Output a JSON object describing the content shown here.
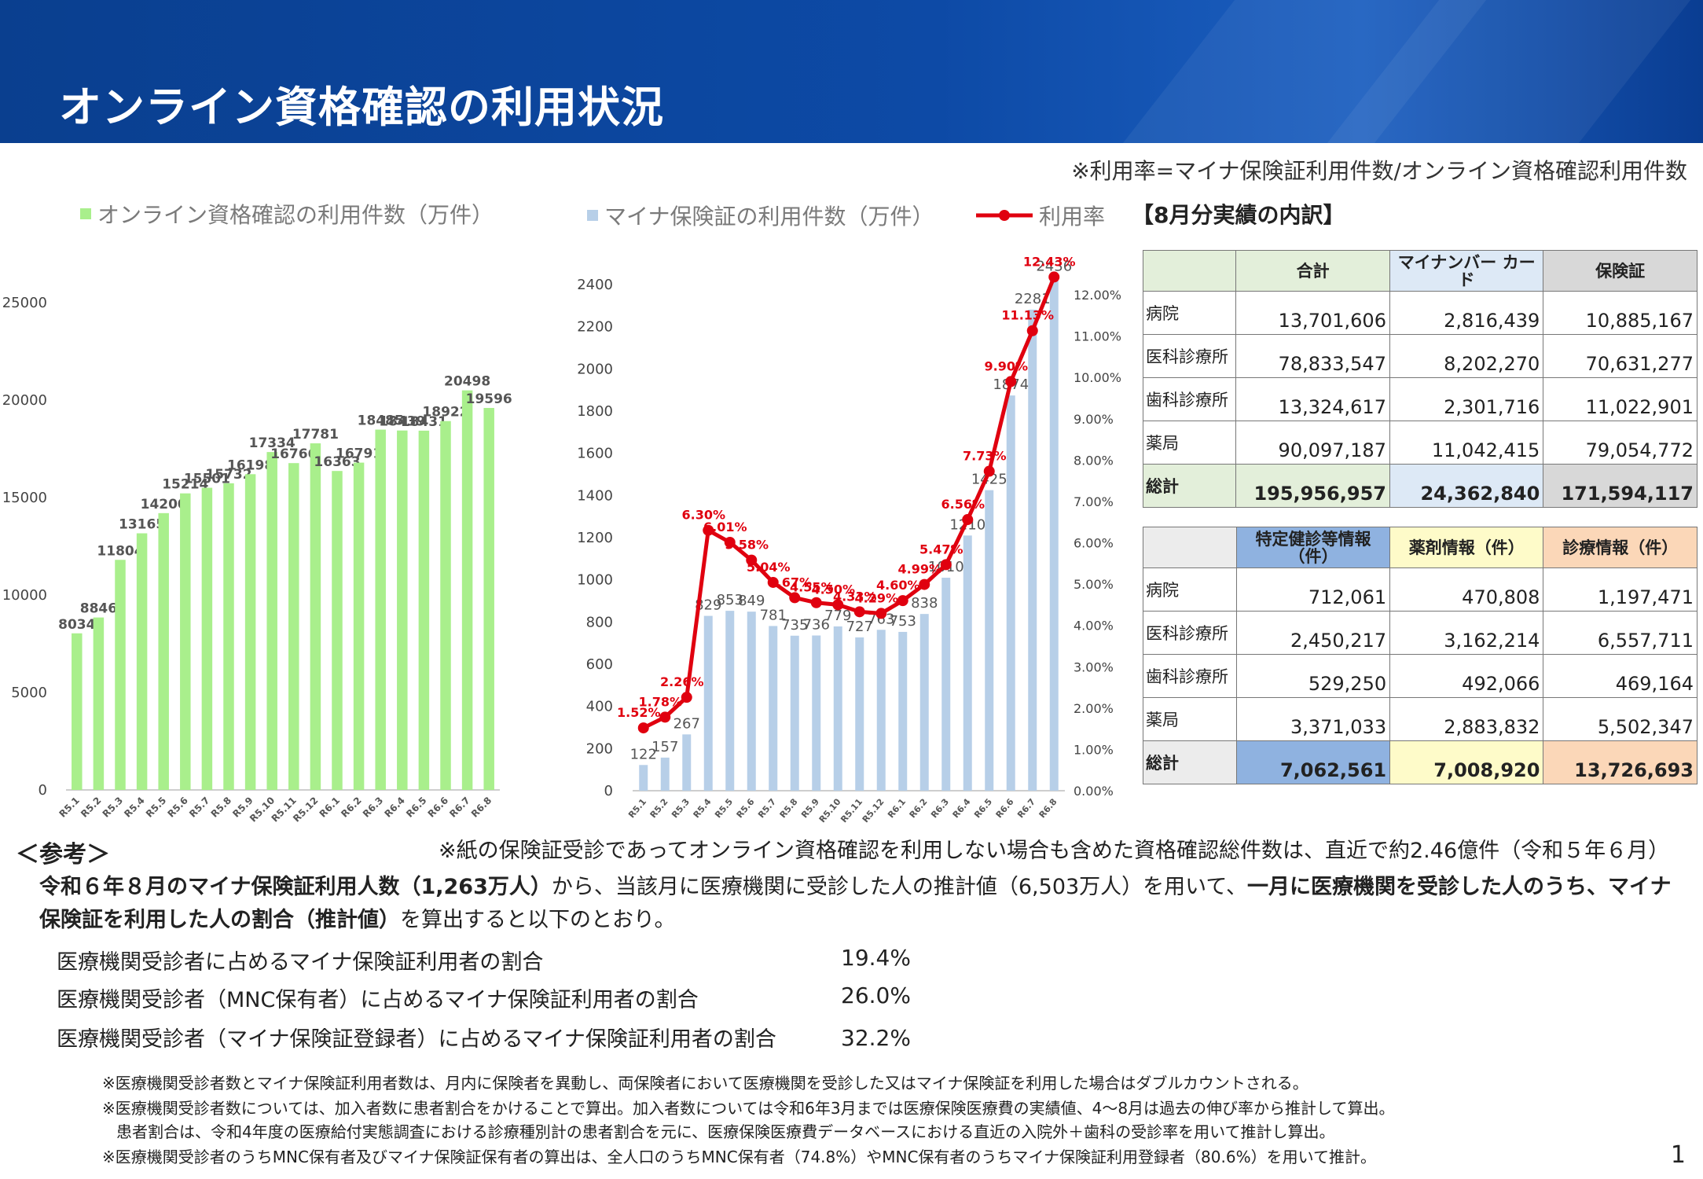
{
  "title": "オンライン資格確認の利用状況",
  "note_top": "※利用率=マイナ保険証利用件数/オンライン資格確認利用件数",
  "legend": {
    "left": "オンライン資格確認の利用件数（万件）",
    "right_bar": "マイナ保険証の利用件数（万件）",
    "right_line": "利用率"
  },
  "colors": {
    "green_bar": "#a9ef8c",
    "blue_bar": "#b7cfe8",
    "red_line": "#e0000f",
    "banner": "#0d4aa6"
  },
  "chart_data": [
    {
      "type": "bar",
      "categories": [
        "R5.1",
        "R5.2",
        "R5.3",
        "R5.4",
        "R5.5",
        "R5.6",
        "R5.7",
        "R5.8",
        "R5.9",
        "R5.10",
        "R5.11",
        "R5.12",
        "R6.1",
        "R6.2",
        "R6.3",
        "R6.4",
        "R6.5",
        "R6.6",
        "R6.7",
        "R6.8"
      ],
      "values": [
        8034,
        8846,
        11804,
        13165,
        14200,
        15214,
        15501,
        15732,
        16198,
        17334,
        16766,
        17781,
        16363,
        16791,
        18485,
        18439,
        18431,
        18922,
        20498,
        19596
      ],
      "y_ticks": [
        "0",
        "5000",
        "10000",
        "15000",
        "20000",
        "25000"
      ],
      "ylim": [
        0,
        25000
      ],
      "title": "",
      "xlabel": "",
      "ylabel": ""
    },
    {
      "type": "bar+line",
      "categories": [
        "R5.1",
        "R5.2",
        "R5.3",
        "R5.4",
        "R5.5",
        "R5.6",
        "R5.7",
        "R5.8",
        "R5.9",
        "R5.10",
        "R5.11",
        "R5.12",
        "R6.1",
        "R6.2",
        "R6.3",
        "R6.4",
        "R6.5",
        "R6.6",
        "R6.7",
        "R6.8"
      ],
      "bar_values": [
        122,
        157,
        267,
        829,
        853,
        849,
        781,
        735,
        736,
        779,
        727,
        763,
        753,
        838,
        1010,
        1210,
        1425,
        1874,
        2281,
        2436
      ],
      "rate_values": [
        1.52,
        1.78,
        2.26,
        6.3,
        6.01,
        5.58,
        5.04,
        4.67,
        4.55,
        4.5,
        4.33,
        4.29,
        4.6,
        4.99,
        5.47,
        6.56,
        7.73,
        9.9,
        11.13,
        12.43
      ],
      "rate_labels": [
        "1.52%",
        "1.78%",
        "2.26%",
        "6.30%",
        "6.01%",
        "5.58%",
        "5.04%",
        "4.67%",
        "4.55%",
        "4.50%",
        "4.33%",
        "4.29%",
        "4.60%",
        "4.99%",
        "5.47%",
        "6.56%",
        "7.73%",
        "9.90%",
        "11.13%",
        "12.43%"
      ],
      "y_ticks_left": [
        "0",
        "200",
        "400",
        "600",
        "800",
        "1000",
        "1200",
        "1400",
        "1600",
        "1800",
        "2000",
        "2200",
        "2400"
      ],
      "y_ticks_right": [
        "0.00%",
        "1.00%",
        "2.00%",
        "3.00%",
        "4.00%",
        "5.00%",
        "6.00%",
        "7.00%",
        "8.00%",
        "9.00%",
        "10.00%",
        "11.00%",
        "12.00%"
      ],
      "ylim_left": [
        0,
        2400
      ],
      "ylim_right": [
        0,
        12
      ],
      "title": "",
      "xlabel": "",
      "ylabel": ""
    }
  ],
  "breakdown": {
    "title": "【8月分実績の内訳】",
    "table1": {
      "headers": [
        "",
        "合計",
        "マイナンバー カード",
        "保険証"
      ],
      "rows": [
        [
          "病院",
          "13,701,606",
          "2,816,439",
          "10,885,167"
        ],
        [
          "医科診療所",
          "78,833,547",
          "8,202,270",
          "70,631,277"
        ],
        [
          "歯科診療所",
          "13,324,617",
          "2,301,716",
          "11,022,901"
        ],
        [
          "薬局",
          "90,097,187",
          "11,042,415",
          "79,054,772"
        ]
      ],
      "total": [
        "総計",
        "195,956,957",
        "24,362,840",
        "171,594,117"
      ]
    },
    "table2": {
      "headers": [
        "",
        "特定健診等情報（件）",
        "薬剤情報（件）",
        "診療情報（件）"
      ],
      "rows": [
        [
          "病院",
          "712,061",
          "470,808",
          "1,197,471"
        ],
        [
          "医科診療所",
          "2,450,217",
          "3,162,214",
          "6,557,711"
        ],
        [
          "歯科診療所",
          "529,250",
          "492,066",
          "469,164"
        ],
        [
          "薬局",
          "3,371,033",
          "2,883,832",
          "5,502,347"
        ]
      ],
      "total": [
        "総計",
        "7,062,561",
        "7,008,920",
        "13,726,693"
      ]
    }
  },
  "reference": {
    "label": "＜参考＞",
    "note": "※紙の保険証受診であってオンライン資格確認を利用しない場合も含めた資格確認総件数は、直近で約2.46億件（令和５年６月）",
    "para_b1": "令和６年８月のマイナ保険証利用人数（1,263万人）",
    "para_t1": "から、当該月に医療機関に受診した人の推計値（6,503万人）を用いて、",
    "para_b2": "一月に医療機関を受診した人のうち、マイナ保険証を利用した人の割合（推計値）",
    "para_t2": "を算出すると以下のとおり。",
    "ratios": [
      {
        "label": "医療機関受診者に占めるマイナ保険証利用者の割合",
        "value": "19.4%"
      },
      {
        "label": "医療機関受診者（MNC保有者）に占めるマイナ保険証利用者の割合",
        "value": "26.0%"
      },
      {
        "label": "医療機関受診者（マイナ保険証登録者）に占めるマイナ保険証利用者の割合",
        "value": "32.2%"
      }
    ],
    "footnotes": [
      "※医療機関受診者数とマイナ保険証利用者数は、月内に保険者を異動し、両保険者において医療機関を受診した又はマイナ保険証を利用した場合はダブルカウントされる。",
      "※医療機関受診者数については、加入者数に患者割合をかけることで算出。加入者数については令和6年3月までは医療保険医療費の実績値、4～8月は過去の伸び率から推計して算出。",
      "患者割合は、令和4年度の医療給付実態調査における診療種別計の患者割合を元に、医療保険医療費データベースにおける直近の入院外＋歯科の受診率を用いて推計し算出。",
      "※医療機関受診者のうちMNC保有者及びマイナ保険証保有者の算出は、全人口のうちMNC保有者（74.8%）やMNC保有者のうちマイナ保険証利用登録者（80.6%）を用いて推計。"
    ]
  },
  "page_number": "1"
}
